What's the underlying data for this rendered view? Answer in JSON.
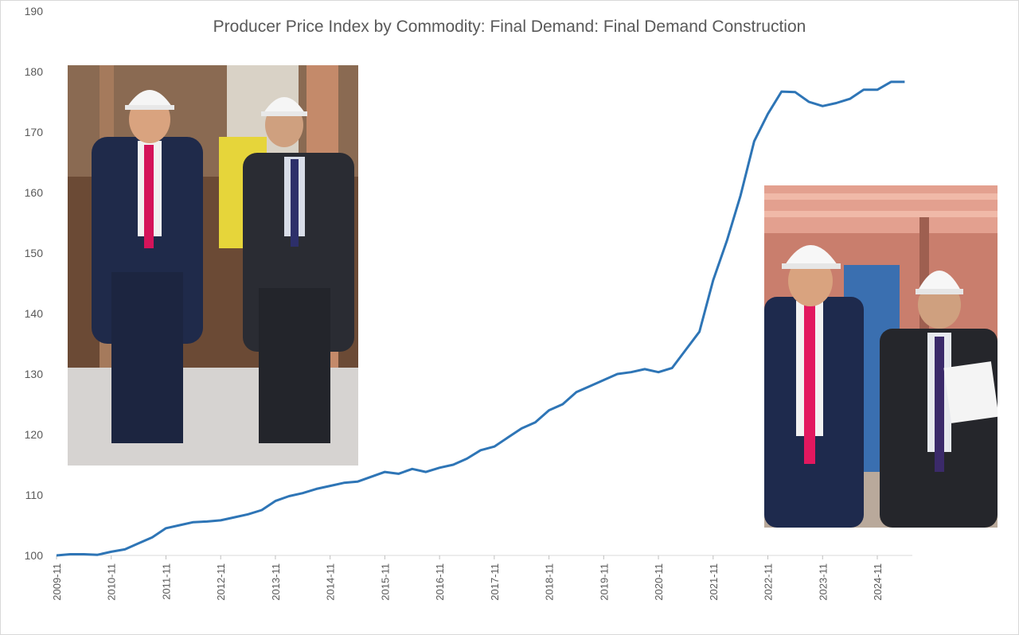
{
  "chart_data": {
    "type": "line",
    "title": "Producer Price Index by Commodity: Final Demand: Final Demand Construction",
    "xlabel": "",
    "ylabel": "",
    "ylim": [
      100,
      190
    ],
    "y_ticks": [
      "100",
      "110",
      "120",
      "130",
      "140",
      "150",
      "160",
      "170",
      "180",
      "190"
    ],
    "x_tick_labels": [
      "2009-11",
      "2010-11",
      "2011-11",
      "2012-11",
      "2013-11",
      "2014-11",
      "2015-11",
      "2016-11",
      "2017-11",
      "2018-11",
      "2019-11",
      "2020-11",
      "2021-11",
      "2022-11",
      "2023-11",
      "2024-11"
    ],
    "grid": false,
    "legend": "none",
    "line_color": "#2e75b6",
    "series": [
      {
        "x": [
          "2009-11",
          "2010-02",
          "2010-05",
          "2010-08",
          "2010-11",
          "2011-02",
          "2011-05",
          "2011-08",
          "2011-11",
          "2012-02",
          "2012-05",
          "2012-08",
          "2012-11",
          "2013-02",
          "2013-05",
          "2013-08",
          "2013-11",
          "2014-02",
          "2014-05",
          "2014-08",
          "2014-11",
          "2015-02",
          "2015-05",
          "2015-08",
          "2015-11",
          "2016-02",
          "2016-05",
          "2016-08",
          "2016-11",
          "2017-02",
          "2017-05",
          "2017-08",
          "2017-11",
          "2018-02",
          "2018-05",
          "2018-08",
          "2018-11",
          "2019-02",
          "2019-05",
          "2019-08",
          "2019-11",
          "2020-02",
          "2020-05",
          "2020-08",
          "2020-11",
          "2021-02",
          "2021-05",
          "2021-08",
          "2021-11",
          "2022-02",
          "2022-05",
          "2022-08",
          "2022-11",
          "2023-02",
          "2023-05",
          "2023-08",
          "2023-11",
          "2024-02",
          "2024-05",
          "2024-08",
          "2024-11",
          "2025-02",
          "2025-05"
        ],
        "values": [
          100.0,
          100.2,
          100.2,
          100.1,
          100.6,
          101.0,
          102.0,
          103.0,
          104.5,
          105.0,
          105.5,
          105.6,
          105.8,
          106.3,
          106.8,
          107.5,
          109.0,
          109.8,
          110.3,
          111.0,
          111.5,
          112.0,
          112.2,
          113.0,
          113.8,
          113.5,
          114.3,
          113.8,
          114.5,
          115.0,
          116.0,
          117.4,
          118.0,
          119.5,
          121.0,
          122.0,
          124.0,
          125.0,
          127.0,
          128.0,
          129.0,
          130.0,
          130.3,
          130.8,
          130.3,
          131.0,
          134.0,
          137.0,
          145.5,
          152.0,
          159.5,
          168.5,
          173.0,
          176.7,
          176.6,
          175.0,
          174.3,
          174.8,
          175.5,
          177.0,
          177.0,
          178.3,
          178.3
        ]
      }
    ]
  },
  "photos": {
    "left": {
      "description_icon": "hard-hat-photo-icon"
    },
    "right": {
      "description_icon": "hard-hat-photo-icon"
    }
  }
}
